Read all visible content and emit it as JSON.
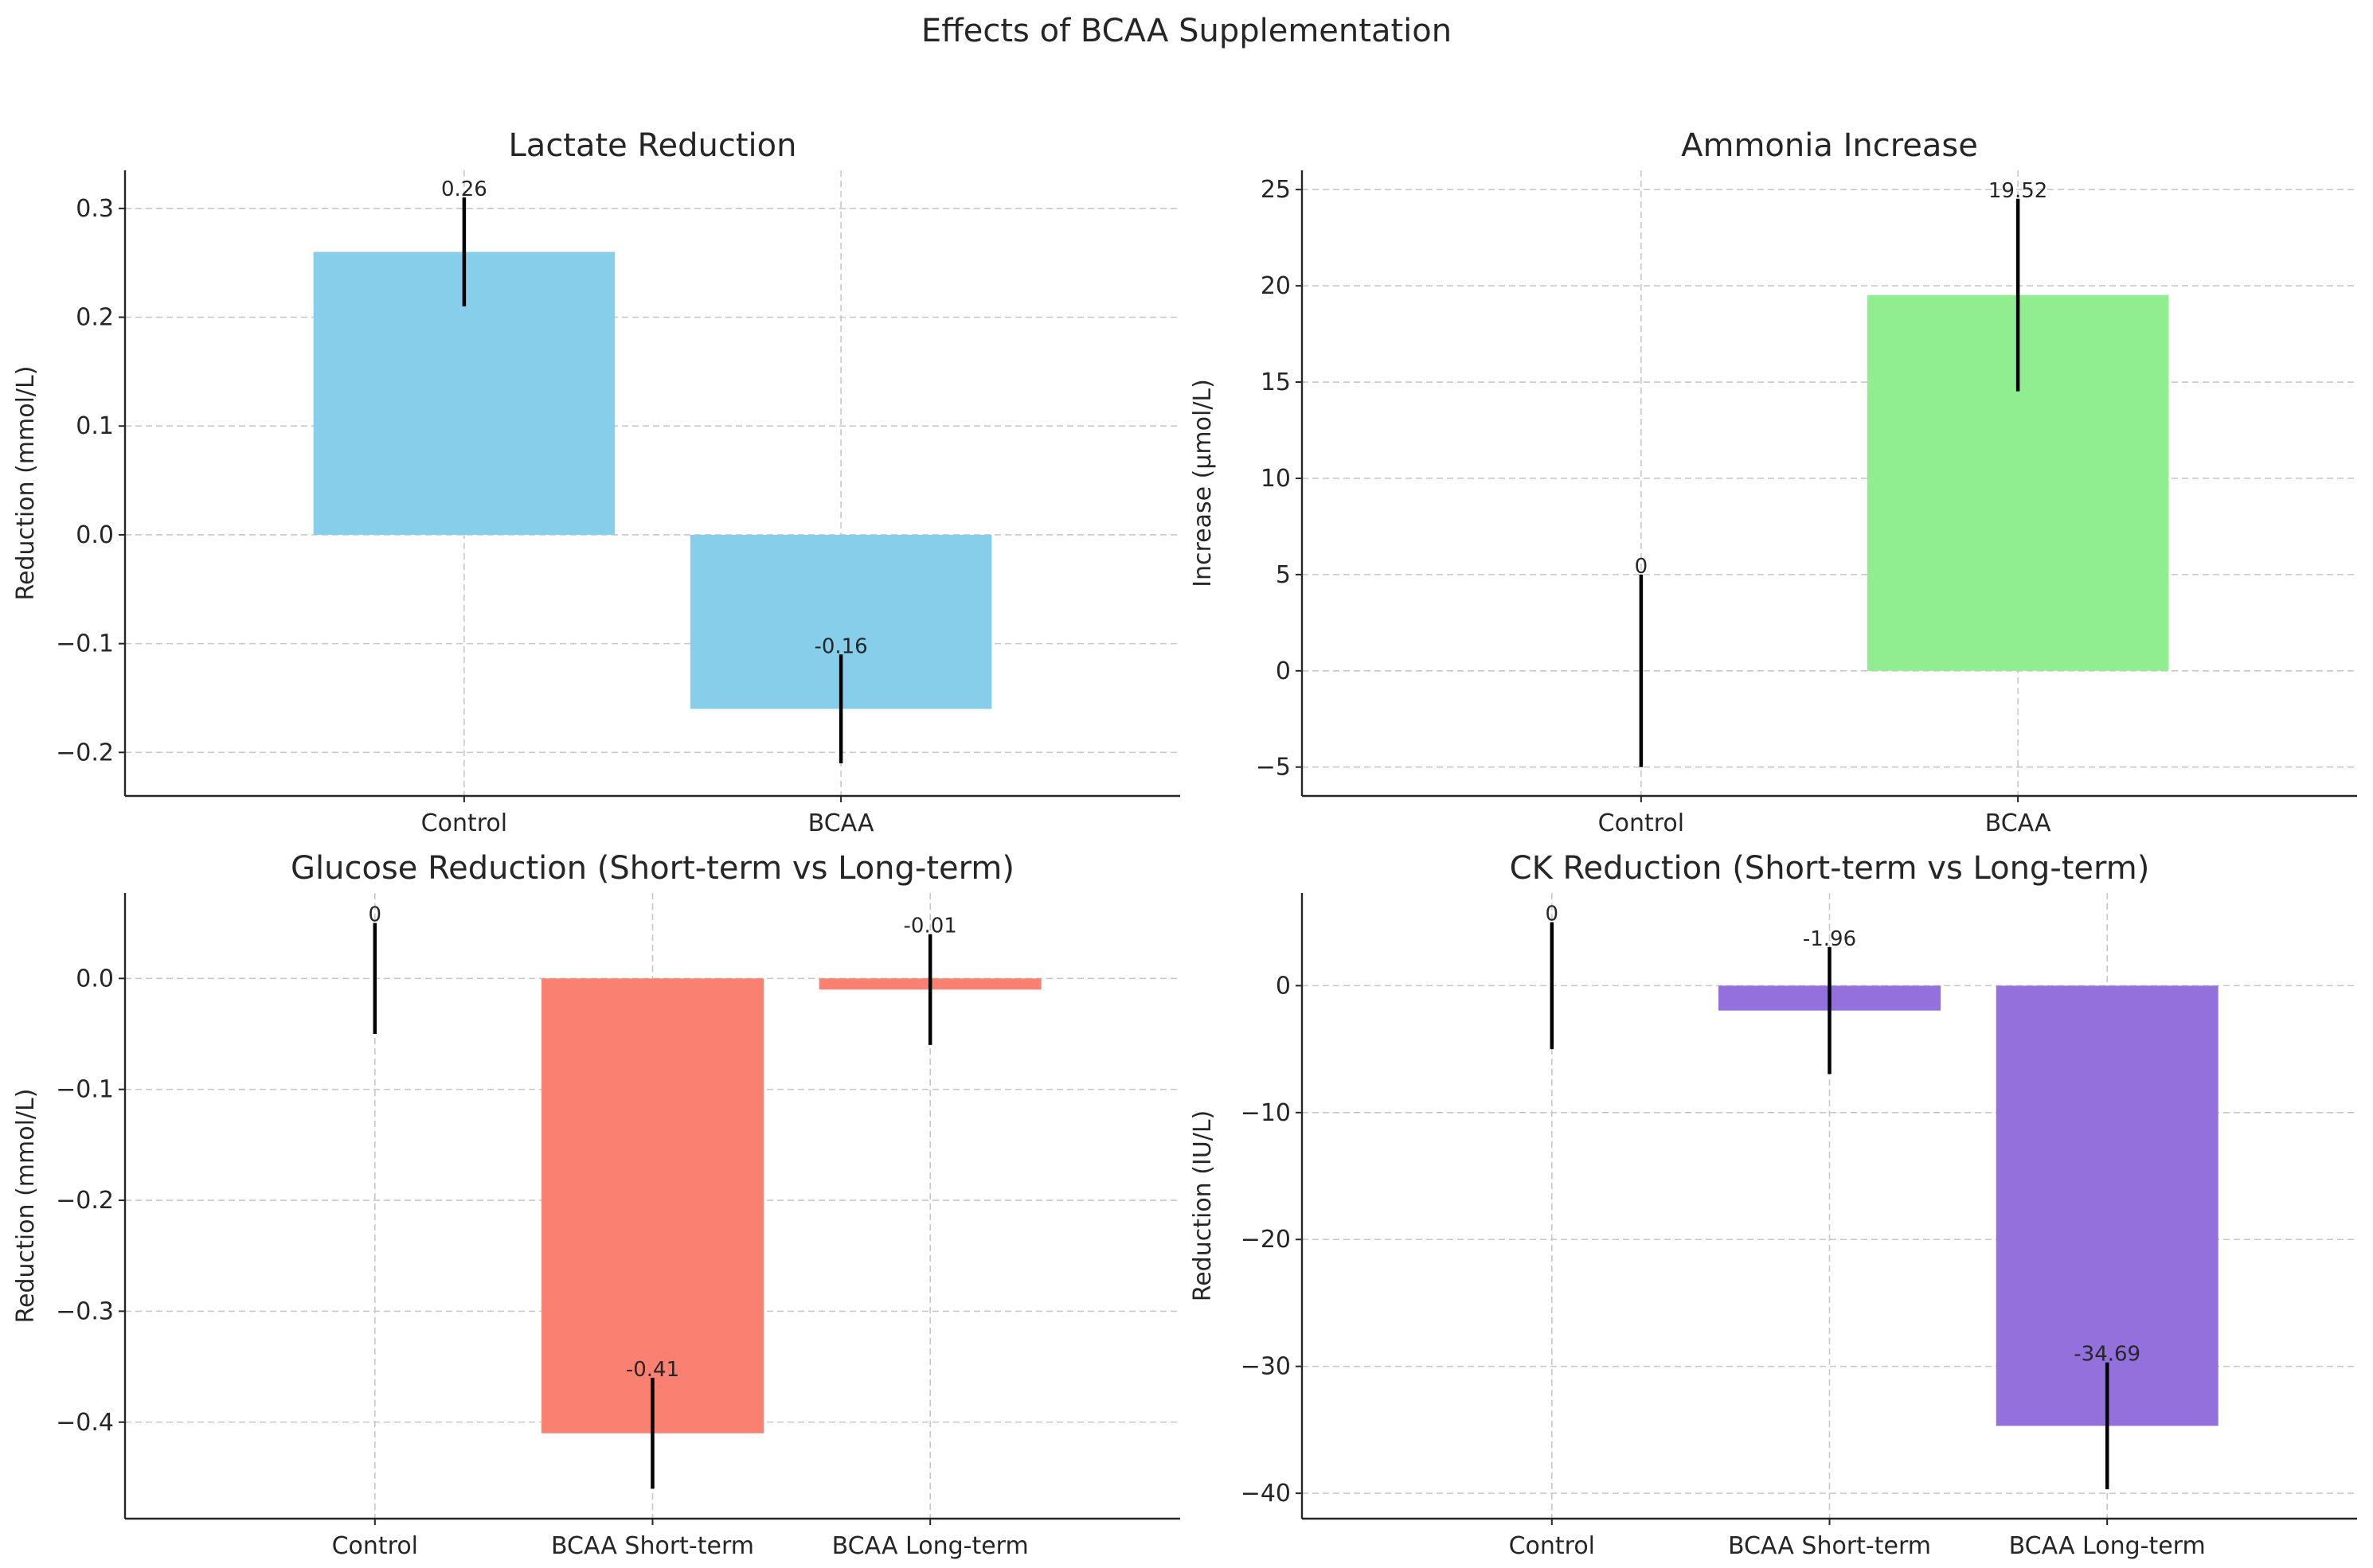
{
  "figure_title": "Effects of BCAA Supplementation",
  "chart_data": [
    {
      "type": "bar",
      "title": "Lactate Reduction",
      "xlabel": "",
      "ylabel": "Reduction (mmol/L)",
      "categories": [
        "Control",
        "BCAA"
      ],
      "values": [
        0.26,
        -0.16
      ],
      "errors": [
        0.05,
        0.05
      ],
      "labels": [
        "0.26",
        "-0.16"
      ],
      "color": "#87ceeb",
      "ylim": [
        -0.24,
        0.335
      ],
      "yticks": [
        -0.2,
        -0.1,
        0.0,
        0.1,
        0.2,
        0.3
      ],
      "ytick_labels": [
        "−0.2",
        "−0.1",
        "0.0",
        "0.1",
        "0.2",
        "0.3"
      ],
      "grid": true
    },
    {
      "type": "bar",
      "title": "Ammonia Increase",
      "xlabel": "",
      "ylabel": "Increase (µmol/L)",
      "categories": [
        "Control",
        "BCAA"
      ],
      "values": [
        0,
        19.52
      ],
      "errors": [
        5,
        5
      ],
      "labels": [
        "0",
        "19.52"
      ],
      "color": "#90ee90",
      "ylim": [
        -6.5,
        26
      ],
      "yticks": [
        -5,
        0,
        5,
        10,
        15,
        20,
        25
      ],
      "ytick_labels": [
        "−5",
        "0",
        "5",
        "10",
        "15",
        "20",
        "25"
      ],
      "grid": true
    },
    {
      "type": "bar",
      "title": "Glucose Reduction (Short-term vs Long-term)",
      "xlabel": "",
      "ylabel": "Reduction (mmol/L)",
      "categories": [
        "Control",
        "BCAA Short-term",
        "BCAA Long-term"
      ],
      "values": [
        0,
        -0.41,
        -0.01
      ],
      "errors": [
        0.05,
        0.05,
        0.05
      ],
      "labels": [
        "0",
        "-0.41",
        "-0.01"
      ],
      "color": "#fa8072",
      "ylim": [
        -0.487,
        0.077
      ],
      "yticks": [
        -0.4,
        -0.3,
        -0.2,
        -0.1,
        0.0
      ],
      "ytick_labels": [
        "−0.4",
        "−0.3",
        "−0.2",
        "−0.1",
        "0.0"
      ],
      "grid": true
    },
    {
      "type": "bar",
      "title": "CK Reduction (Short-term vs Long-term)",
      "xlabel": "",
      "ylabel": "Reduction (IU/L)",
      "categories": [
        "Control",
        "BCAA Short-term",
        "BCAA Long-term"
      ],
      "values": [
        0,
        -1.96,
        -34.69
      ],
      "errors": [
        5,
        5,
        5
      ],
      "labels": [
        "0",
        "-1.96",
        "-34.69"
      ],
      "color": "#9370db",
      "ylim": [
        -42,
        7.3
      ],
      "yticks": [
        -40,
        -30,
        -20,
        -10,
        0
      ],
      "ytick_labels": [
        "−40",
        "−30",
        "−20",
        "−10",
        "0"
      ],
      "grid": true
    }
  ]
}
